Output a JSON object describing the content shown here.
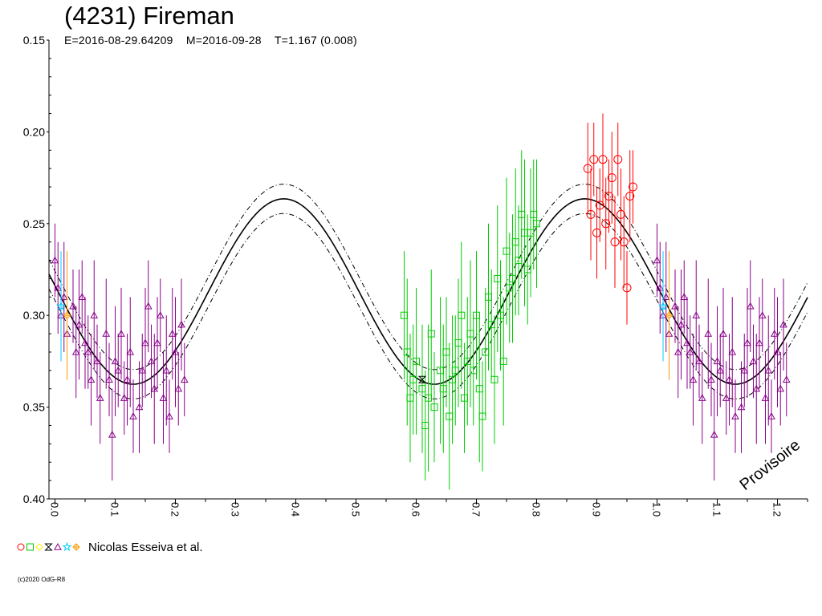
{
  "header": {
    "title": "(4231) Fireman",
    "subtitle": "E=2016-08-29.64209    M=2016-09-28    T=1.167 (0.008)"
  },
  "legend": {
    "symbols": [
      "circle",
      "square",
      "diamond",
      "hourglass",
      "triangle",
      "star",
      "plus-diamond"
    ],
    "symbol_colors": [
      "#ff0000",
      "#00cc00",
      "#ffee00",
      "#000000",
      "#8b008b",
      "#00ccff",
      "#ff9900"
    ],
    "label": "Nicolas Esseiva et al."
  },
  "watermark": "Provisoire",
  "copyright": "(c)2020 OdG-R8",
  "chart_data": {
    "type": "scatter",
    "xlim": [
      -0.01,
      1.25
    ],
    "ylim": [
      0.4,
      0.15
    ],
    "y_inverted": true,
    "x_ticks": [
      0.0,
      0.1,
      0.2,
      0.3,
      0.4,
      0.5,
      0.6,
      0.7,
      0.8,
      0.9,
      1.0,
      1.1,
      1.2
    ],
    "x_tick_labels": [
      "0.0",
      "0.1",
      "0.2",
      "0.3",
      "0.4",
      "0.5",
      "0.6",
      "0.7",
      "0.8",
      "0.9",
      "1.0",
      "1.1",
      "1.2"
    ],
    "y_ticks": [
      0.15,
      0.2,
      0.25,
      0.3,
      0.35,
      0.4
    ],
    "y_tick_labels": [
      "0.15",
      "0.20",
      "0.25",
      "0.30",
      "0.35",
      "0.40"
    ],
    "grid": false,
    "fit": {
      "period_fraction_cycles": 2,
      "mean": 0.287,
      "amplitude": 0.0505,
      "max_brightness_phase": 0.38,
      "envelope_offset": 0.004
    },
    "series": [
      {
        "symbol": "triangle",
        "color": "#8b008b",
        "x": [
          0.0,
          0.005,
          0.01,
          0.015,
          0.02,
          0.03,
          0.035,
          0.04,
          0.045,
          0.05,
          0.055,
          0.06,
          0.065,
          0.07,
          0.075,
          0.085,
          0.09,
          0.095,
          0.1,
          0.105,
          0.11,
          0.115,
          0.12,
          0.125,
          0.13,
          0.14,
          0.145,
          0.15,
          0.155,
          0.16,
          0.165,
          0.17,
          0.175,
          0.18,
          0.185,
          0.19,
          0.195,
          0.2,
          0.205,
          0.21,
          0.215
        ],
        "y": [
          0.27,
          0.285,
          0.3,
          0.29,
          0.31,
          0.295,
          0.32,
          0.305,
          0.29,
          0.315,
          0.32,
          0.335,
          0.3,
          0.325,
          0.345,
          0.31,
          0.335,
          0.365,
          0.325,
          0.33,
          0.31,
          0.345,
          0.335,
          0.32,
          0.355,
          0.35,
          0.33,
          0.315,
          0.295,
          0.325,
          0.34,
          0.315,
          0.3,
          0.345,
          0.33,
          0.355,
          0.31,
          0.32,
          0.34,
          0.305,
          0.335
        ],
        "err": [
          0.02,
          0.025,
          0.02,
          0.03,
          0.025,
          0.02,
          0.025,
          0.03,
          0.02,
          0.025,
          0.02,
          0.025,
          0.03,
          0.02,
          0.025,
          0.03,
          0.02,
          0.025,
          0.03,
          0.02,
          0.025,
          0.02,
          0.025,
          0.03,
          0.02,
          0.025,
          0.02,
          0.03,
          0.025,
          0.02,
          0.03,
          0.025,
          0.02,
          0.025,
          0.03,
          0.02,
          0.025,
          0.03,
          0.02,
          0.025,
          0.02
        ]
      },
      {
        "symbol": "square",
        "color": "#00cc00",
        "x": [
          0.58,
          0.585,
          0.59,
          0.595,
          0.6,
          0.61,
          0.615,
          0.62,
          0.625,
          0.63,
          0.64,
          0.645,
          0.65,
          0.655,
          0.66,
          0.665,
          0.67,
          0.675,
          0.68,
          0.685,
          0.69,
          0.695,
          0.7,
          0.705,
          0.71,
          0.715,
          0.72,
          0.725,
          0.73,
          0.735,
          0.74,
          0.745,
          0.75,
          0.755,
          0.76,
          0.765,
          0.77,
          0.775,
          0.78,
          0.785,
          0.79,
          0.795,
          0.8
        ],
        "y": [
          0.3,
          0.32,
          0.345,
          0.335,
          0.325,
          0.34,
          0.36,
          0.345,
          0.31,
          0.35,
          0.33,
          0.34,
          0.32,
          0.355,
          0.335,
          0.33,
          0.315,
          0.3,
          0.345,
          0.325,
          0.31,
          0.33,
          0.3,
          0.34,
          0.355,
          0.32,
          0.29,
          0.305,
          0.335,
          0.28,
          0.3,
          0.325,
          0.265,
          0.285,
          0.28,
          0.26,
          0.27,
          0.245,
          0.255,
          0.275,
          0.255,
          0.245,
          0.25
        ],
        "err": [
          0.035,
          0.04,
          0.035,
          0.03,
          0.04,
          0.035,
          0.03,
          0.04,
          0.035,
          0.03,
          0.04,
          0.035,
          0.03,
          0.04,
          0.035,
          0.03,
          0.035,
          0.04,
          0.03,
          0.035,
          0.04,
          0.03,
          0.035,
          0.04,
          0.03,
          0.035,
          0.04,
          0.03,
          0.035,
          0.04,
          0.03,
          0.035,
          0.04,
          0.03,
          0.035,
          0.04,
          0.03,
          0.035,
          0.04,
          0.03,
          0.035,
          0.03,
          0.035
        ]
      },
      {
        "symbol": "circle",
        "color": "#ff0000",
        "x": [
          0.885,
          0.89,
          0.895,
          0.9,
          0.905,
          0.91,
          0.915,
          0.92,
          0.925,
          0.93,
          0.935,
          0.94,
          0.945,
          0.95,
          0.955,
          0.96
        ],
        "y": [
          0.22,
          0.245,
          0.215,
          0.255,
          0.24,
          0.215,
          0.25,
          0.235,
          0.225,
          0.26,
          0.215,
          0.245,
          0.26,
          0.285,
          0.235,
          0.23
        ],
        "err": [
          0.025,
          0.025,
          0.02,
          0.025,
          0.02,
          0.025,
          0.025,
          0.02,
          0.025,
          0.025,
          0.02,
          0.025,
          0.025,
          0.02,
          0.025,
          0.02
        ]
      },
      {
        "symbol": "triangle",
        "color": "#8b008b",
        "x": [
          1.0,
          1.005,
          1.01,
          1.015,
          1.02,
          1.03,
          1.035,
          1.04,
          1.045,
          1.05,
          1.055,
          1.06,
          1.065,
          1.07,
          1.075,
          1.085,
          1.09,
          1.095,
          1.1,
          1.105,
          1.11,
          1.115,
          1.12,
          1.125,
          1.13,
          1.14,
          1.145,
          1.15,
          1.155,
          1.16,
          1.165,
          1.17,
          1.175,
          1.18,
          1.185,
          1.19,
          1.195,
          1.2,
          1.205,
          1.21,
          1.215
        ],
        "y": [
          0.27,
          0.285,
          0.3,
          0.29,
          0.31,
          0.295,
          0.32,
          0.305,
          0.29,
          0.315,
          0.32,
          0.335,
          0.3,
          0.325,
          0.345,
          0.31,
          0.335,
          0.365,
          0.325,
          0.33,
          0.31,
          0.345,
          0.335,
          0.32,
          0.355,
          0.35,
          0.33,
          0.315,
          0.295,
          0.325,
          0.34,
          0.315,
          0.3,
          0.345,
          0.33,
          0.355,
          0.31,
          0.32,
          0.34,
          0.305,
          0.335
        ],
        "err": [
          0.02,
          0.025,
          0.02,
          0.03,
          0.025,
          0.02,
          0.025,
          0.03,
          0.02,
          0.025,
          0.02,
          0.025,
          0.03,
          0.02,
          0.025,
          0.03,
          0.02,
          0.025,
          0.03,
          0.02,
          0.025,
          0.02,
          0.025,
          0.03,
          0.02,
          0.025,
          0.02,
          0.03,
          0.025,
          0.02,
          0.03,
          0.025,
          0.02,
          0.025,
          0.03,
          0.02,
          0.025,
          0.03,
          0.02,
          0.025,
          0.02
        ]
      },
      {
        "symbol": "star",
        "color": "#00ccff",
        "x": [
          0.01,
          1.01
        ],
        "y": [
          0.295,
          0.295
        ],
        "err": [
          0.03,
          0.03
        ]
      },
      {
        "symbol": "plus-diamond",
        "color": "#ff9900",
        "x": [
          0.02,
          1.02
        ],
        "y": [
          0.3,
          0.3
        ],
        "err": [
          0.035,
          0.035
        ]
      },
      {
        "symbol": "hourglass",
        "color": "#000000",
        "x": [
          0.61
        ],
        "y": [
          0.335
        ],
        "err": [
          0.0
        ]
      }
    ]
  }
}
